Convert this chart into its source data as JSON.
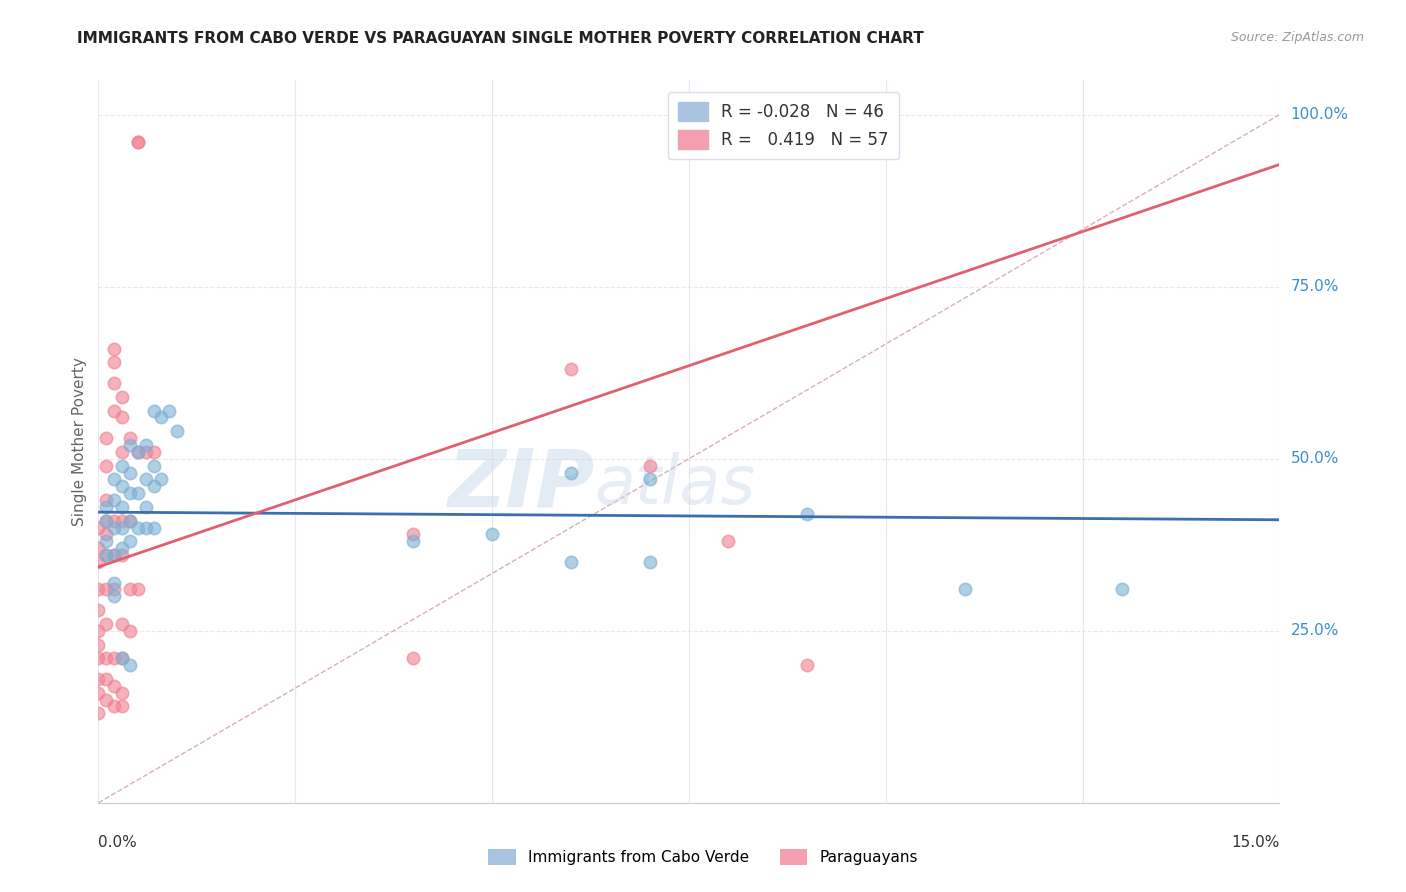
{
  "title": "IMMIGRANTS FROM CABO VERDE VS PARAGUAYAN SINGLE MOTHER POVERTY CORRELATION CHART",
  "source": "Source: ZipAtlas.com",
  "ylabel": "Single Mother Poverty",
  "yticks": [
    0.0,
    0.25,
    0.5,
    0.75,
    1.0
  ],
  "ytick_labels": [
    "",
    "25.0%",
    "50.0%",
    "75.0%",
    "100.0%"
  ],
  "xmin": 0.0,
  "xmax": 0.15,
  "ymin": 0.0,
  "ymax": 1.05,
  "cabo_verde_color": "#7bafd4",
  "paraguayan_color": "#f08090",
  "cabo_verde_line_color": "#3a6fb0",
  "paraguayan_line_color": "#e06070",
  "cabo_verde_R": -0.028,
  "cabo_verde_N": 46,
  "paraguayan_R": 0.419,
  "paraguayan_N": 57,
  "cabo_verde_points": [
    [
      0.001,
      0.43
    ],
    [
      0.001,
      0.41
    ],
    [
      0.001,
      0.38
    ],
    [
      0.001,
      0.36
    ],
    [
      0.002,
      0.47
    ],
    [
      0.002,
      0.44
    ],
    [
      0.002,
      0.4
    ],
    [
      0.002,
      0.36
    ],
    [
      0.002,
      0.32
    ],
    [
      0.002,
      0.3
    ],
    [
      0.003,
      0.49
    ],
    [
      0.003,
      0.46
    ],
    [
      0.003,
      0.43
    ],
    [
      0.003,
      0.4
    ],
    [
      0.003,
      0.37
    ],
    [
      0.003,
      0.21
    ],
    [
      0.004,
      0.52
    ],
    [
      0.004,
      0.48
    ],
    [
      0.004,
      0.45
    ],
    [
      0.004,
      0.41
    ],
    [
      0.004,
      0.38
    ],
    [
      0.004,
      0.2
    ],
    [
      0.005,
      0.51
    ],
    [
      0.005,
      0.45
    ],
    [
      0.005,
      0.4
    ],
    [
      0.006,
      0.52
    ],
    [
      0.006,
      0.47
    ],
    [
      0.006,
      0.43
    ],
    [
      0.006,
      0.4
    ],
    [
      0.007,
      0.57
    ],
    [
      0.007,
      0.49
    ],
    [
      0.007,
      0.46
    ],
    [
      0.007,
      0.4
    ],
    [
      0.008,
      0.56
    ],
    [
      0.008,
      0.47
    ],
    [
      0.009,
      0.57
    ],
    [
      0.01,
      0.54
    ],
    [
      0.04,
      0.38
    ],
    [
      0.05,
      0.39
    ],
    [
      0.06,
      0.48
    ],
    [
      0.06,
      0.35
    ],
    [
      0.07,
      0.47
    ],
    [
      0.07,
      0.35
    ],
    [
      0.09,
      0.42
    ],
    [
      0.11,
      0.31
    ],
    [
      0.13,
      0.31
    ]
  ],
  "paraguayan_points": [
    [
      0.0,
      0.4
    ],
    [
      0.0,
      0.37
    ],
    [
      0.0,
      0.35
    ],
    [
      0.0,
      0.31
    ],
    [
      0.0,
      0.28
    ],
    [
      0.0,
      0.25
    ],
    [
      0.0,
      0.23
    ],
    [
      0.0,
      0.21
    ],
    [
      0.0,
      0.18
    ],
    [
      0.0,
      0.16
    ],
    [
      0.0,
      0.13
    ],
    [
      0.001,
      0.53
    ],
    [
      0.001,
      0.49
    ],
    [
      0.001,
      0.44
    ],
    [
      0.001,
      0.41
    ],
    [
      0.001,
      0.39
    ],
    [
      0.001,
      0.36
    ],
    [
      0.001,
      0.31
    ],
    [
      0.001,
      0.26
    ],
    [
      0.001,
      0.21
    ],
    [
      0.001,
      0.18
    ],
    [
      0.001,
      0.15
    ],
    [
      0.002,
      0.66
    ],
    [
      0.002,
      0.64
    ],
    [
      0.002,
      0.61
    ],
    [
      0.002,
      0.57
    ],
    [
      0.002,
      0.41
    ],
    [
      0.002,
      0.36
    ],
    [
      0.002,
      0.31
    ],
    [
      0.002,
      0.21
    ],
    [
      0.002,
      0.17
    ],
    [
      0.002,
      0.14
    ],
    [
      0.003,
      0.59
    ],
    [
      0.003,
      0.56
    ],
    [
      0.003,
      0.51
    ],
    [
      0.003,
      0.41
    ],
    [
      0.003,
      0.36
    ],
    [
      0.003,
      0.26
    ],
    [
      0.003,
      0.21
    ],
    [
      0.003,
      0.16
    ],
    [
      0.003,
      0.14
    ],
    [
      0.004,
      0.53
    ],
    [
      0.004,
      0.41
    ],
    [
      0.004,
      0.31
    ],
    [
      0.004,
      0.25
    ],
    [
      0.005,
      0.96
    ],
    [
      0.005,
      0.96
    ],
    [
      0.005,
      0.51
    ],
    [
      0.005,
      0.31
    ],
    [
      0.006,
      0.51
    ],
    [
      0.007,
      0.51
    ],
    [
      0.04,
      0.39
    ],
    [
      0.04,
      0.21
    ],
    [
      0.06,
      0.63
    ],
    [
      0.07,
      0.49
    ],
    [
      0.08,
      0.38
    ],
    [
      0.09,
      0.2
    ]
  ],
  "watermark_zip": "ZIP",
  "watermark_atlas": "atlas",
  "background_color": "#ffffff",
  "grid_color": "#e8e8f0",
  "diagonal_line_color": "#d8b0b8"
}
